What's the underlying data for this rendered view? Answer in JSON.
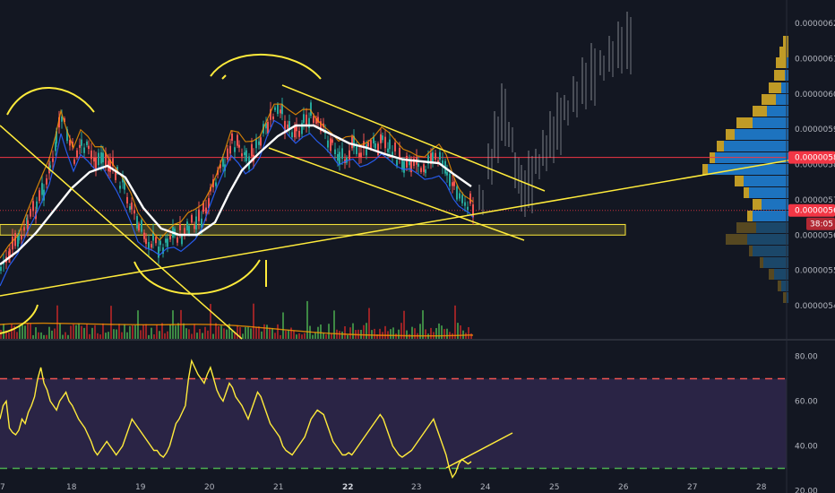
{
  "chart_data": [
    {
      "type": "candlestick",
      "price_axis": {
        "ticks": [
          "0.00000540",
          "0.00000550",
          "0.00000560",
          "0.00000570",
          "0.00000580",
          "0.00000590",
          "0.00000600",
          "0.00000610",
          "0.00000620"
        ],
        "ylim": [
          5.34e-06,
          6.23e-06
        ]
      },
      "date_axis": {
        "ticks": [
          "7",
          "18",
          "19",
          "20",
          "21",
          "22",
          "23",
          "24",
          "25",
          "26",
          "27",
          "28"
        ],
        "bold_tick": "22"
      },
      "price_labels": [
        {
          "name": "horizontal-line",
          "value": "0.00000582",
          "color": "#f23645"
        },
        {
          "name": "last-price",
          "value": "0.00000567",
          "color": "#f23645"
        },
        {
          "name": "countdown",
          "value": "38:05",
          "color": "#b22833"
        }
      ],
      "series": [
        {
          "name": "price",
          "color_up": "#26a69a",
          "color_down": "#ef5350"
        },
        {
          "name": "moving-average",
          "color": "#ffffff"
        },
        {
          "name": "volume"
        },
        {
          "name": "volume-profile",
          "color_up": "#2196f3",
          "color_down": "#c9a227"
        }
      ],
      "annotations": [
        {
          "type": "projection",
          "description": "price path towards 0.00000617"
        },
        {
          "type": "trendline",
          "color": "#ffeb3b"
        },
        {
          "type": "support-zone",
          "color": "#ffeb3b",
          "range": [
            5.6e-06,
            5.63e-06
          ]
        }
      ]
    },
    {
      "type": "line",
      "panel": "rsi",
      "ticks": [
        "20.00",
        "40.00",
        "60.00",
        "80.00"
      ],
      "ylim": [
        19,
        87
      ],
      "levels": [
        70,
        30
      ],
      "color": "#ffeb3b",
      "values": [
        52,
        58,
        60,
        48,
        46,
        45,
        47,
        52,
        50,
        55,
        58,
        62,
        70,
        75,
        68,
        65,
        60,
        58,
        56,
        60,
        62,
        64,
        60,
        58,
        55,
        52,
        50,
        48,
        45,
        42,
        38,
        36,
        38,
        40,
        42,
        40,
        38,
        36,
        38,
        40,
        44,
        48,
        52,
        50,
        48,
        46,
        44,
        42,
        40,
        38,
        38,
        36,
        35,
        37,
        40,
        45,
        50,
        52,
        55,
        58,
        70,
        78,
        75,
        72,
        70,
        68,
        72,
        75,
        70,
        65,
        62,
        60,
        64,
        68,
        66,
        62,
        60,
        58,
        55,
        52,
        56,
        60,
        64,
        62,
        58,
        54,
        50,
        48,
        46,
        44,
        40,
        38,
        37,
        36,
        38,
        40,
        42,
        44,
        48,
        52,
        54,
        56,
        55,
        54,
        50,
        46,
        42,
        40,
        38,
        36,
        36,
        37,
        36,
        38,
        40,
        42,
        44,
        46,
        48,
        50,
        52,
        54,
        52,
        48,
        44,
        40,
        38,
        36,
        35,
        36,
        37,
        38,
        40,
        42,
        44,
        46,
        48,
        50,
        52,
        48,
        44,
        40,
        36,
        30,
        26,
        28,
        32,
        34,
        33,
        32,
        33
      ]
    }
  ]
}
